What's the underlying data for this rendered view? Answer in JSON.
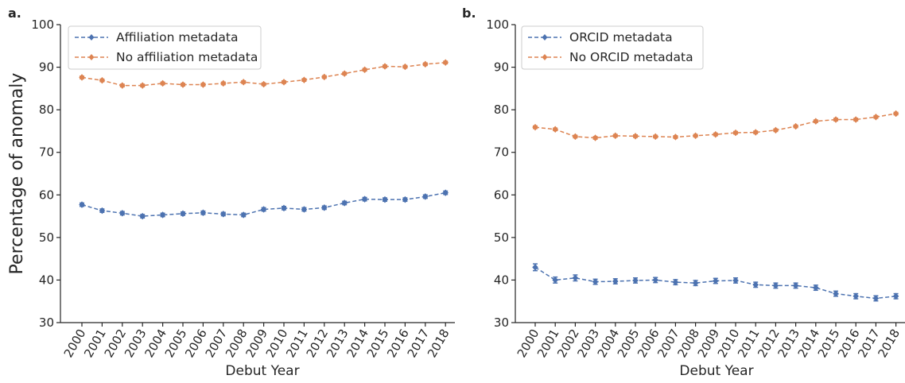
{
  "chart_data": [
    {
      "type": "line",
      "panel_label": "a.",
      "xlabel": "Debut Year",
      "ylabel": "Percentage of anomaly",
      "ylim": [
        30,
        100
      ],
      "yticks": [
        "30",
        "40",
        "50",
        "60",
        "70",
        "80",
        "90",
        "100"
      ],
      "categories": [
        "2000",
        "2001",
        "2002",
        "2003",
        "2004",
        "2005",
        "2006",
        "2007",
        "2008",
        "2009",
        "2010",
        "2011",
        "2012",
        "2013",
        "2014",
        "2015",
        "2016",
        "2017",
        "2018"
      ],
      "legend_position": "top-left",
      "grid": false,
      "series": [
        {
          "name": "Affiliation metadata",
          "color": "#4C72B0",
          "marker": "diamond",
          "linestyle": "dashed",
          "values": [
            57.7,
            56.3,
            55.7,
            55.0,
            55.3,
            55.6,
            55.8,
            55.5,
            55.3,
            56.6,
            56.9,
            56.6,
            57.0,
            58.1,
            59.0,
            58.9,
            58.9,
            59.6,
            60.5
          ],
          "error": [
            0.4,
            0.4,
            0.4,
            0.4,
            0.4,
            0.4,
            0.4,
            0.4,
            0.4,
            0.4,
            0.4,
            0.4,
            0.4,
            0.4,
            0.4,
            0.4,
            0.4,
            0.4,
            0.4
          ]
        },
        {
          "name": "No affiliation metadata",
          "color": "#DD8452",
          "marker": "diamond",
          "linestyle": "dashed",
          "values": [
            87.6,
            86.9,
            85.7,
            85.7,
            86.2,
            85.9,
            85.9,
            86.2,
            86.5,
            86.0,
            86.5,
            87.0,
            87.7,
            88.5,
            89.4,
            90.2,
            90.1,
            90.7,
            91.1
          ],
          "error": [
            0.3,
            0.3,
            0.3,
            0.3,
            0.3,
            0.3,
            0.3,
            0.3,
            0.3,
            0.3,
            0.3,
            0.3,
            0.3,
            0.3,
            0.3,
            0.3,
            0.3,
            0.3,
            0.3
          ]
        }
      ]
    },
    {
      "type": "line",
      "panel_label": "b.",
      "xlabel": "Debut Year",
      "ylabel": "",
      "ylim": [
        30,
        100
      ],
      "yticks": [
        "30",
        "40",
        "50",
        "60",
        "70",
        "80",
        "90",
        "100"
      ],
      "categories": [
        "2000",
        "2001",
        "2002",
        "2003",
        "2004",
        "2005",
        "2006",
        "2007",
        "2008",
        "2009",
        "2010",
        "2011",
        "2012",
        "2013",
        "2014",
        "2015",
        "2016",
        "2017",
        "2018"
      ],
      "legend_position": "top-left",
      "grid": false,
      "series": [
        {
          "name": "ORCID metadata",
          "color": "#4C72B0",
          "marker": "diamond",
          "linestyle": "dashed",
          "values": [
            43.0,
            40.0,
            40.5,
            39.6,
            39.7,
            39.9,
            40.0,
            39.5,
            39.3,
            39.8,
            39.9,
            38.9,
            38.7,
            38.7,
            38.2,
            36.8,
            36.2,
            35.7,
            36.2
          ],
          "error": [
            0.8,
            0.7,
            0.7,
            0.6,
            0.6,
            0.6,
            0.6,
            0.6,
            0.6,
            0.6,
            0.6,
            0.6,
            0.6,
            0.6,
            0.6,
            0.6,
            0.6,
            0.6,
            0.6
          ]
        },
        {
          "name": "No ORCID metadata",
          "color": "#DD8452",
          "marker": "diamond",
          "linestyle": "dashed",
          "values": [
            75.9,
            75.4,
            73.7,
            73.4,
            73.9,
            73.8,
            73.7,
            73.6,
            73.9,
            74.2,
            74.6,
            74.7,
            75.2,
            76.1,
            77.3,
            77.7,
            77.7,
            78.3,
            79.1
          ],
          "error": [
            0.3,
            0.3,
            0.3,
            0.3,
            0.3,
            0.3,
            0.3,
            0.3,
            0.3,
            0.3,
            0.3,
            0.3,
            0.3,
            0.3,
            0.3,
            0.3,
            0.3,
            0.3,
            0.3
          ]
        }
      ]
    }
  ]
}
